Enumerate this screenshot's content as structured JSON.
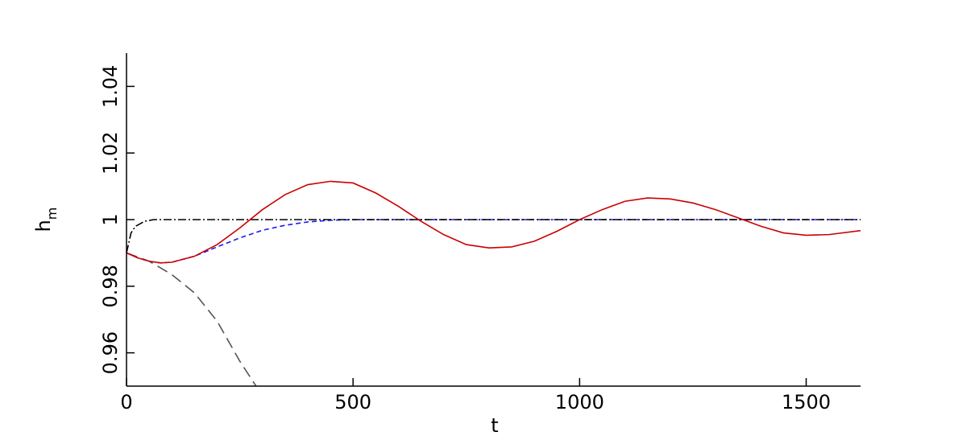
{
  "chart_data": {
    "type": "line",
    "xlabel": "t",
    "ylabel": "h",
    "ylabel_subscript": "m",
    "xlim": [
      0,
      1620
    ],
    "ylim": [
      0.95,
      1.05
    ],
    "xticks": [
      0,
      500,
      1000,
      1500
    ],
    "yticks": [
      0.96,
      0.98,
      1,
      1.02,
      1.04
    ],
    "series": [
      {
        "color": "#555555",
        "dash": "14,7",
        "x": [
          0,
          50,
          100,
          150,
          200,
          250,
          286
        ],
        "values": [
          0.99,
          0.9875,
          0.9835,
          0.978,
          0.9695,
          0.9575,
          0.95
        ]
      },
      {
        "color": "#1a1aff",
        "dash": "6,4",
        "x": [
          0,
          25,
          50,
          75,
          100,
          150,
          200,
          250,
          300,
          350,
          400,
          450,
          500,
          600,
          1620
        ],
        "values": [
          0.99,
          0.9885,
          0.9875,
          0.987,
          0.9872,
          0.989,
          0.9918,
          0.9945,
          0.9968,
          0.9983,
          0.9993,
          0.9998,
          1.0,
          1.0,
          1.0
        ]
      },
      {
        "color": "#000000",
        "dash": "10,3,2,3",
        "x": [
          0,
          10,
          20,
          40,
          60,
          1620
        ],
        "values": [
          0.99,
          0.996,
          0.998,
          0.9995,
          1.0,
          1.0
        ]
      },
      {
        "color": "#cc0000",
        "dash": "",
        "x": [
          0,
          25,
          50,
          75,
          100,
          150,
          200,
          250,
          300,
          350,
          400,
          450,
          500,
          550,
          600,
          650,
          700,
          750,
          800,
          850,
          900,
          950,
          1000,
          1050,
          1100,
          1150,
          1200,
          1250,
          1300,
          1350,
          1400,
          1450,
          1500,
          1550,
          1620
        ],
        "values": [
          0.99,
          0.9885,
          0.9875,
          0.987,
          0.9872,
          0.989,
          0.9925,
          0.9975,
          1.003,
          1.0075,
          1.0105,
          1.0115,
          1.011,
          1.008,
          1.004,
          0.9995,
          0.9955,
          0.9925,
          0.9915,
          0.9918,
          0.9935,
          0.9965,
          1.0,
          1.003,
          1.0055,
          1.0065,
          1.0062,
          1.005,
          1.003,
          1.0005,
          0.998,
          0.996,
          0.9953,
          0.9955,
          0.9967
        ]
      }
    ]
  }
}
